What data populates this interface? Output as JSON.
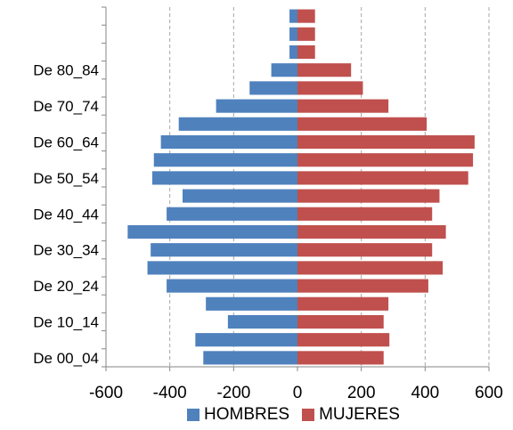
{
  "chart_data": {
    "type": "bar",
    "orientation": "horizontal",
    "stacked_pyramid": true,
    "categories": [
      "De 00_04",
      "",
      "De 10_14",
      "",
      "De 20_24",
      "",
      "De 30_34",
      "",
      "De 40_44",
      "",
      "De 50_54",
      "",
      "De 60_64",
      "",
      "De 70_74",
      "",
      "De 80_84",
      "",
      "",
      ""
    ],
    "series": [
      {
        "name": "HOMBRES",
        "color": "#4f81bd",
        "values": [
          -295,
          -320,
          -218,
          -287,
          -410,
          -470,
          -460,
          -532,
          -410,
          -360,
          -455,
          -450,
          -428,
          -372,
          -255,
          -150,
          -82,
          -25,
          -25,
          -25
        ]
      },
      {
        "name": "MUJERES",
        "color": "#c0504d",
        "values": [
          270,
          288,
          270,
          285,
          410,
          455,
          422,
          465,
          422,
          445,
          535,
          550,
          555,
          405,
          285,
          205,
          168,
          55,
          55,
          55
        ]
      }
    ],
    "xlim": [
      -600,
      600
    ],
    "xticks": [
      "-600",
      "-400",
      "-200",
      "0",
      "200",
      "400",
      "600"
    ],
    "xtick_values": [
      -600,
      -400,
      -200,
      0,
      200,
      400,
      600
    ],
    "grid": "vertical dashed",
    "legend": "bottom",
    "title": "",
    "xlabel": "",
    "ylabel": ""
  }
}
